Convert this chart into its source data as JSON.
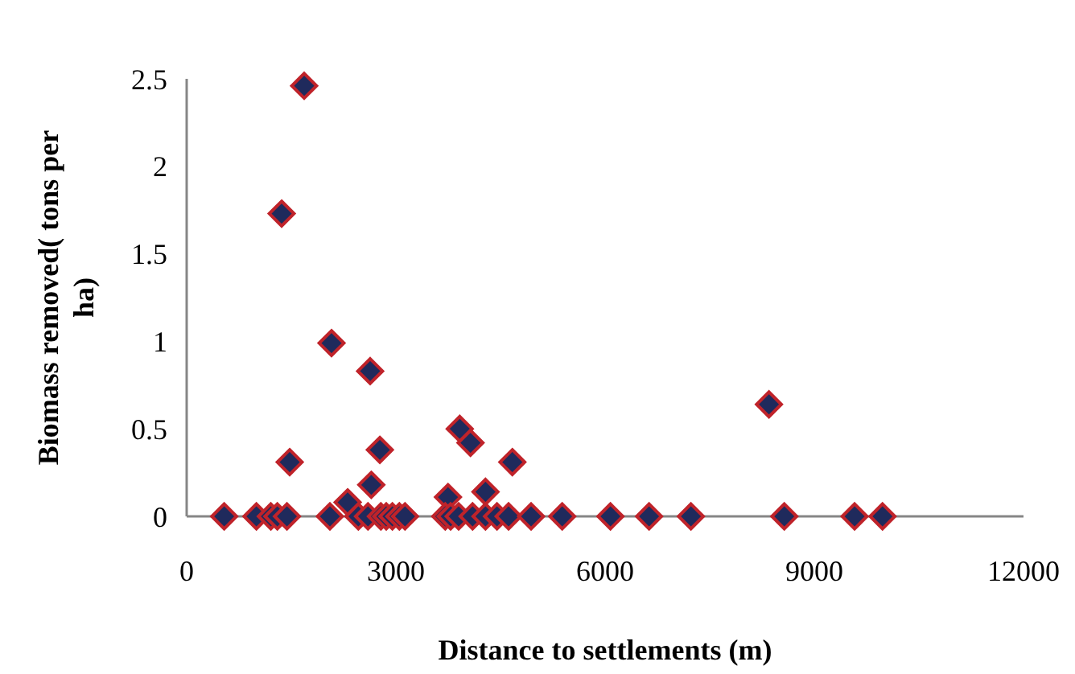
{
  "chart_data": {
    "type": "scatter",
    "xlabel": "Distance to settlements (m)",
    "ylabel": "Biomass removed( tons per ha)",
    "xlim": [
      0,
      12000
    ],
    "xticks": [
      0,
      3000,
      6000,
      9000,
      12000
    ],
    "ylim": [
      0,
      2.5
    ],
    "yticks": [
      0,
      0.5,
      1,
      1.5,
      2,
      2.5
    ],
    "grid": false,
    "marker": "diamond",
    "series": [
      {
        "color": "#1f2a5c",
        "x": [
          1685,
          1362,
          2077,
          2631,
          3916,
          4070,
          1477,
          2770,
          4670,
          2647,
          2308,
          3747,
          4285,
          8350,
          538,
          1000,
          1207,
          1300,
          1438,
          2054,
          2462,
          2600,
          2785,
          2862,
          2950,
          3050,
          3131,
          3708,
          3785,
          3900,
          4100,
          4285,
          4450,
          4616,
          4939,
          5385,
          6077,
          6631,
          7231,
          8570,
          9578,
          9978
        ],
        "values": [
          2.46,
          1.73,
          0.99,
          0.83,
          0.5,
          0.42,
          0.31,
          0.38,
          0.31,
          0.18,
          0.08,
          0.11,
          0.14,
          0.64,
          0,
          0,
          0,
          0,
          0,
          0,
          0,
          0,
          0,
          0,
          0,
          0,
          0,
          0,
          0,
          0,
          0,
          0,
          0,
          0,
          0,
          0,
          0,
          0,
          0,
          0,
          0,
          0
        ]
      }
    ]
  }
}
